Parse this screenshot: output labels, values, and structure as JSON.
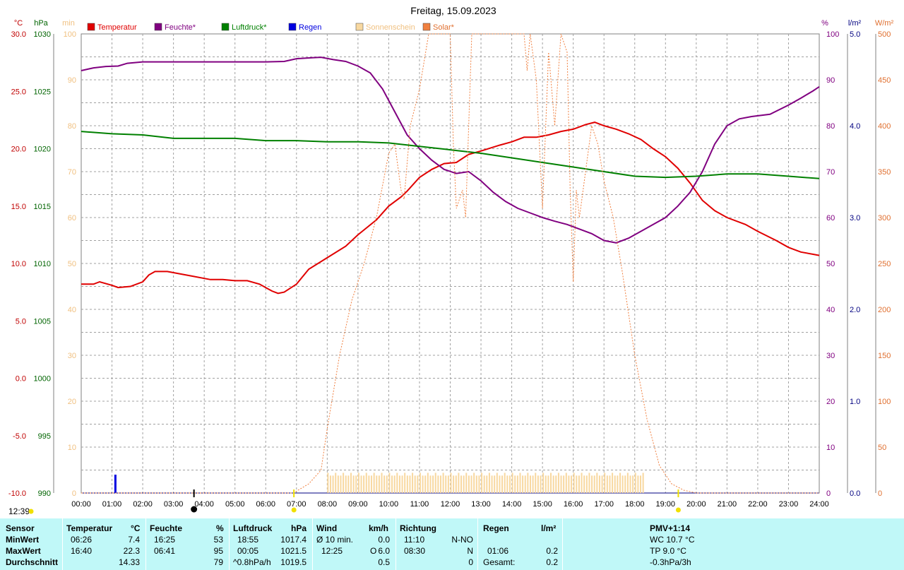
{
  "chart_data": {
    "type": "line",
    "title": "Freitag, 15.09.2023",
    "time_label": "12:39",
    "x_ticks": [
      "00:00",
      "01:00",
      "02:00",
      "03:00",
      "04:00",
      "05:00",
      "06:00",
      "07:00",
      "08:00",
      "09:00",
      "10:00",
      "11:00",
      "12:00",
      "13:00",
      "14:00",
      "15:00",
      "16:00",
      "17:00",
      "18:00",
      "19:00",
      "20:00",
      "21:00",
      "22:00",
      "23:00",
      "24:00"
    ],
    "x_range_hours": [
      0,
      24
    ],
    "grid": true,
    "legend_position": "top",
    "axes": [
      {
        "unit": "°C",
        "range": [
          -10,
          30
        ],
        "ticks": [
          "30.0",
          "25.0",
          "20.0",
          "15.0",
          "10.0",
          "5.0",
          "0.0",
          "-5.0",
          "-10.0"
        ],
        "color": "#c00000"
      },
      {
        "unit": "hPa",
        "range": [
          990,
          1030
        ],
        "ticks": [
          "1030",
          "1025",
          "1020",
          "1015",
          "1010",
          "1005",
          "1000",
          "995",
          "990"
        ],
        "color": "#006400"
      },
      {
        "unit": "min",
        "range": [
          0,
          100
        ],
        "ticks": [
          "100",
          "90",
          "80",
          "70",
          "60",
          "50",
          "40",
          "30",
          "20",
          "10",
          "0"
        ],
        "color": "#f0d090"
      },
      {
        "unit": "%",
        "range": [
          0,
          100
        ],
        "ticks": [
          "100",
          "90",
          "80",
          "70",
          "60",
          "50",
          "40",
          "30",
          "20",
          "10",
          "0"
        ],
        "color": "#800080"
      },
      {
        "unit": "l/m²",
        "range": [
          0,
          5
        ],
        "ticks": [
          "5.0",
          "4.0",
          "3.0",
          "2.0",
          "1.0",
          "0.0"
        ],
        "color": "#000080"
      },
      {
        "unit": "W/m²",
        "range": [
          0,
          500
        ],
        "ticks": [
          "500",
          "450",
          "400",
          "350",
          "300",
          "250",
          "200",
          "150",
          "100",
          "50",
          "0"
        ],
        "color": "#e09050"
      }
    ],
    "legend": [
      {
        "name": "Temperatur",
        "color": "#e00000"
      },
      {
        "name": "Feuchte*",
        "color": "#800080"
      },
      {
        "name": "Luftdruck*",
        "color": "#008000"
      },
      {
        "name": "Regen",
        "color": "#0000e0"
      },
      {
        "name": "Sonnenschein",
        "color": "#f8d8a0"
      },
      {
        "name": "Solar*",
        "color": "#f08040"
      }
    ],
    "series": [
      {
        "name": "Temperatur",
        "unit": "°C",
        "color": "#e00000",
        "points": [
          [
            0.0,
            8.2
          ],
          [
            0.4,
            8.2
          ],
          [
            0.6,
            8.4
          ],
          [
            1.0,
            8.1
          ],
          [
            1.2,
            7.9
          ],
          [
            1.6,
            8.0
          ],
          [
            2.0,
            8.4
          ],
          [
            2.2,
            9.0
          ],
          [
            2.4,
            9.3
          ],
          [
            2.8,
            9.3
          ],
          [
            3.2,
            9.1
          ],
          [
            3.6,
            8.9
          ],
          [
            4.2,
            8.6
          ],
          [
            4.6,
            8.6
          ],
          [
            5.0,
            8.5
          ],
          [
            5.4,
            8.5
          ],
          [
            5.8,
            8.2
          ],
          [
            6.2,
            7.6
          ],
          [
            6.4,
            7.4
          ],
          [
            6.6,
            7.5
          ],
          [
            7.0,
            8.2
          ],
          [
            7.4,
            9.5
          ],
          [
            8.0,
            10.5
          ],
          [
            8.6,
            11.5
          ],
          [
            9.0,
            12.5
          ],
          [
            9.6,
            13.8
          ],
          [
            10.0,
            15.0
          ],
          [
            10.4,
            15.8
          ],
          [
            10.6,
            16.3
          ],
          [
            11.0,
            17.5
          ],
          [
            11.4,
            18.2
          ],
          [
            11.8,
            18.7
          ],
          [
            12.2,
            18.8
          ],
          [
            12.6,
            19.5
          ],
          [
            13.0,
            19.8
          ],
          [
            13.6,
            20.3
          ],
          [
            14.0,
            20.6
          ],
          [
            14.4,
            21.0
          ],
          [
            14.8,
            21.0
          ],
          [
            15.2,
            21.2
          ],
          [
            15.6,
            21.5
          ],
          [
            16.0,
            21.7
          ],
          [
            16.4,
            22.1
          ],
          [
            16.7,
            22.3
          ],
          [
            17.0,
            22.0
          ],
          [
            17.4,
            21.7
          ],
          [
            17.8,
            21.3
          ],
          [
            18.2,
            20.8
          ],
          [
            18.6,
            20.0
          ],
          [
            19.0,
            19.3
          ],
          [
            19.4,
            18.3
          ],
          [
            19.8,
            17.0
          ],
          [
            20.2,
            15.5
          ],
          [
            20.6,
            14.6
          ],
          [
            21.0,
            14.0
          ],
          [
            21.6,
            13.4
          ],
          [
            22.0,
            12.8
          ],
          [
            22.6,
            12.0
          ],
          [
            23.0,
            11.4
          ],
          [
            23.4,
            11.0
          ],
          [
            23.8,
            10.8
          ],
          [
            24.0,
            10.7
          ]
        ]
      },
      {
        "name": "Feuchte*",
        "unit": "%",
        "color": "#800080",
        "points": [
          [
            0.0,
            92.0
          ],
          [
            0.4,
            92.6
          ],
          [
            0.8,
            92.9
          ],
          [
            1.2,
            93.0
          ],
          [
            1.5,
            93.6
          ],
          [
            2.0,
            93.9
          ],
          [
            3.0,
            93.9
          ],
          [
            4.0,
            93.9
          ],
          [
            5.0,
            93.9
          ],
          [
            6.0,
            93.9
          ],
          [
            6.6,
            94.0
          ],
          [
            7.0,
            94.6
          ],
          [
            7.5,
            94.8
          ],
          [
            7.8,
            94.9
          ],
          [
            8.2,
            94.4
          ],
          [
            8.6,
            94.0
          ],
          [
            9.0,
            93.0
          ],
          [
            9.4,
            91.5
          ],
          [
            9.8,
            88.0
          ],
          [
            10.2,
            83.0
          ],
          [
            10.6,
            78.0
          ],
          [
            11.0,
            75.0
          ],
          [
            11.4,
            72.5
          ],
          [
            11.8,
            70.5
          ],
          [
            12.2,
            69.6
          ],
          [
            12.6,
            70.0
          ],
          [
            13.0,
            68.0
          ],
          [
            13.4,
            65.5
          ],
          [
            13.8,
            63.5
          ],
          [
            14.2,
            62.0
          ],
          [
            14.6,
            61.0
          ],
          [
            15.0,
            60.0
          ],
          [
            15.4,
            59.2
          ],
          [
            15.8,
            58.5
          ],
          [
            16.2,
            57.5
          ],
          [
            16.6,
            56.5
          ],
          [
            17.0,
            55.0
          ],
          [
            17.4,
            54.5
          ],
          [
            17.8,
            55.5
          ],
          [
            18.2,
            57.0
          ],
          [
            18.6,
            58.5
          ],
          [
            19.0,
            60.0
          ],
          [
            19.4,
            62.5
          ],
          [
            19.8,
            65.5
          ],
          [
            20.2,
            70.0
          ],
          [
            20.6,
            76.0
          ],
          [
            21.0,
            80.0
          ],
          [
            21.4,
            81.5
          ],
          [
            21.8,
            82.0
          ],
          [
            22.4,
            82.5
          ],
          [
            23.0,
            84.5
          ],
          [
            23.4,
            86.0
          ],
          [
            23.8,
            87.6
          ],
          [
            24.0,
            88.5
          ]
        ]
      },
      {
        "name": "Luftdruck*",
        "unit": "hPa",
        "color": "#008000",
        "points": [
          [
            0.0,
            1021.5
          ],
          [
            1.0,
            1021.3
          ],
          [
            2.0,
            1021.2
          ],
          [
            3.0,
            1020.9
          ],
          [
            4.0,
            1020.9
          ],
          [
            5.0,
            1020.9
          ],
          [
            6.0,
            1020.7
          ],
          [
            7.0,
            1020.7
          ],
          [
            8.0,
            1020.6
          ],
          [
            9.0,
            1020.6
          ],
          [
            10.0,
            1020.5
          ],
          [
            11.0,
            1020.2
          ],
          [
            12.0,
            1019.9
          ],
          [
            13.0,
            1019.6
          ],
          [
            14.0,
            1019.2
          ],
          [
            15.0,
            1018.8
          ],
          [
            16.0,
            1018.4
          ],
          [
            17.0,
            1018.0
          ],
          [
            18.0,
            1017.6
          ],
          [
            19.0,
            1017.5
          ],
          [
            20.0,
            1017.6
          ],
          [
            21.0,
            1017.8
          ],
          [
            22.0,
            1017.8
          ],
          [
            23.0,
            1017.6
          ],
          [
            24.0,
            1017.4
          ]
        ]
      },
      {
        "name": "Solar*",
        "unit": "W/m²",
        "color": "#f08040",
        "points": [
          [
            0.0,
            0
          ],
          [
            6.9,
            0
          ],
          [
            7.4,
            10
          ],
          [
            7.8,
            25
          ],
          [
            8.0,
            70
          ],
          [
            8.4,
            150
          ],
          [
            8.8,
            210
          ],
          [
            9.2,
            250
          ],
          [
            9.6,
            300
          ],
          [
            10.0,
            370
          ],
          [
            10.2,
            380
          ],
          [
            10.4,
            330
          ],
          [
            10.5,
            320
          ],
          [
            10.7,
            400
          ],
          [
            11.0,
            440
          ],
          [
            11.3,
            500
          ],
          [
            11.6,
            500
          ],
          [
            12.0,
            500
          ],
          [
            12.1,
            380
          ],
          [
            12.2,
            310
          ],
          [
            12.4,
            330
          ],
          [
            12.5,
            300
          ],
          [
            12.7,
            500
          ],
          [
            12.8,
            500
          ],
          [
            13.0,
            500
          ],
          [
            13.3,
            500
          ],
          [
            13.5,
            500
          ],
          [
            13.8,
            500
          ],
          [
            14.2,
            500
          ],
          [
            14.4,
            500
          ],
          [
            14.5,
            460
          ],
          [
            14.6,
            500
          ],
          [
            14.8,
            450
          ],
          [
            15.0,
            310
          ],
          [
            15.2,
            480
          ],
          [
            15.4,
            400
          ],
          [
            15.6,
            500
          ],
          [
            15.8,
            480
          ],
          [
            15.9,
            330
          ],
          [
            16.0,
            230
          ],
          [
            16.1,
            330
          ],
          [
            16.2,
            300
          ],
          [
            16.4,
            350
          ],
          [
            16.6,
            400
          ],
          [
            16.8,
            380
          ],
          [
            17.0,
            340
          ],
          [
            17.3,
            300
          ],
          [
            17.6,
            240
          ],
          [
            18.0,
            150
          ],
          [
            18.4,
            80
          ],
          [
            18.8,
            30
          ],
          [
            19.2,
            10
          ],
          [
            19.6,
            3
          ],
          [
            20.0,
            0
          ],
          [
            24.0,
            0
          ]
        ]
      }
    ],
    "sunshine_minutes": {
      "start_hour": 8.0,
      "end_hour": 18.25,
      "per_interval": 3.8
    },
    "rain_bars": [
      {
        "hour": 1.1,
        "value": 0.2
      }
    ],
    "event_markers": {
      "moon": "03:40",
      "sunrise": "06:55",
      "sunset": "19:25"
    }
  },
  "summary_table": {
    "sensor_col": {
      "header": "Sensor",
      "rows": [
        "MinWert",
        "MaxWert",
        "Durchschnitt"
      ]
    },
    "temperatur": {
      "header": "Temperatur",
      "unit": "°C",
      "min_time": "06:26",
      "min": "7.4",
      "max_time": "16:40",
      "max": "22.3",
      "avg": "14.33"
    },
    "feuchte": {
      "header": "Feuchte",
      "unit": "%",
      "min_time": "16:25",
      "min": "53",
      "max_time": "06:41",
      "max": "95",
      "avg": "79"
    },
    "luftdruck": {
      "header": "Luftdruck",
      "unit": "hPa",
      "min_time": "18:55",
      "min": "1017.4",
      "max_time": "00:05",
      "max": "1021.5",
      "avg_label": "^0.8hPa/h",
      "avg": "1019.5"
    },
    "wind": {
      "header": "Wind",
      "unit": "km/h",
      "row1_label": "Ø 10 min.",
      "row1": "0.0",
      "row2_time": "12:25",
      "row2_label": "O",
      "row2": "6.0",
      "avg": "0.5"
    },
    "richtung": {
      "header": "Richtung",
      "row1_time": "11:10",
      "row1": "N-NO",
      "row2_time": "08:30",
      "row2": "N",
      "avg": "0"
    },
    "regen": {
      "header": "Regen",
      "unit": "l/m²",
      "row2_time": "01:06",
      "row2": "0.2",
      "total_label": "Gesamt:",
      "total": "0.2"
    },
    "pmv": {
      "header": "PMV+1:14",
      "wc": "WC 10.7 °C",
      "tp": "TP 9.0 °C",
      "trend": "-0.3hPa/3h"
    }
  }
}
